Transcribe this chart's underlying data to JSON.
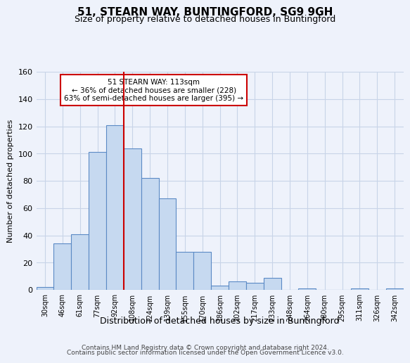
{
  "title1": "51, STEARN WAY, BUNTINGFORD, SG9 9GH",
  "title2": "Size of property relative to detached houses in Buntingford",
  "xlabel": "Distribution of detached houses by size in Buntingford",
  "ylabel": "Number of detached properties",
  "bin_labels": [
    "30sqm",
    "46sqm",
    "61sqm",
    "77sqm",
    "92sqm",
    "108sqm",
    "124sqm",
    "139sqm",
    "155sqm",
    "170sqm",
    "186sqm",
    "202sqm",
    "217sqm",
    "233sqm",
    "248sqm",
    "264sqm",
    "280sqm",
    "295sqm",
    "311sqm",
    "326sqm",
    "342sqm"
  ],
  "bar_heights": [
    2,
    34,
    41,
    101,
    121,
    104,
    82,
    67,
    28,
    28,
    3,
    6,
    5,
    9,
    0,
    1,
    0,
    0,
    1,
    0,
    1
  ],
  "bar_color": "#c6d9f0",
  "bar_edge_color": "#5b8ac5",
  "vline_x": 5,
  "vline_color": "#cc0000",
  "annotation_text_line1": "51 STEARN WAY: 113sqm",
  "annotation_text_line2": "← 36% of detached houses are smaller (228)",
  "annotation_text_line3": "63% of semi-detached houses are larger (395) →",
  "annotation_box_facecolor": "#ffffff",
  "annotation_box_edgecolor": "#cc0000",
  "ylim": [
    0,
    160
  ],
  "yticks": [
    0,
    20,
    40,
    60,
    80,
    100,
    120,
    140,
    160
  ],
  "footnote_line1": "Contains HM Land Registry data © Crown copyright and database right 2024.",
  "footnote_line2": "Contains public sector information licensed under the Open Government Licence v3.0.",
  "bg_color": "#eef2fb",
  "grid_color": "#c8d4e8"
}
